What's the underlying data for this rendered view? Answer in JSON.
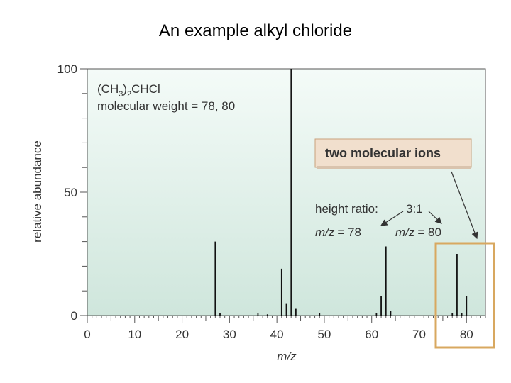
{
  "slide_title": "An example alkyl chloride",
  "chart_data": {
    "type": "bar",
    "title": "",
    "xlabel": "m/z",
    "ylabel": "relative abundance",
    "xlim": [
      0,
      84
    ],
    "ylim": [
      0,
      100
    ],
    "x_ticks": [
      0,
      10,
      20,
      30,
      40,
      50,
      60,
      70,
      80
    ],
    "y_ticks": [
      0,
      50,
      100
    ],
    "grid": false,
    "series": [
      {
        "x": [
          27,
          28,
          36,
          38,
          41,
          42,
          43,
          44,
          49,
          61,
          62,
          63,
          64,
          77,
          78,
          79,
          80
        ],
        "values": [
          30,
          1,
          1,
          0.5,
          19,
          5,
          100,
          3,
          1,
          1,
          8,
          28,
          2,
          1,
          25,
          1,
          8
        ]
      }
    ],
    "annotations": {
      "formula_main": "(CH",
      "formula_sub1": "3",
      "formula_mid": ")",
      "formula_sub2": "2",
      "formula_end": "CHCl",
      "molecular_weight": "molecular weight = 78, 80",
      "molecular_ions_label": "two molecular ions",
      "height_ratio_label": "height ratio:",
      "height_ratio_value": "3:1",
      "mz78": "= 78",
      "mz80": "= 80",
      "mz_italic": "m/z"
    },
    "colors": {
      "plot_bg_top": "#f4fbf8",
      "plot_bg_bottom": "#cfe6dc",
      "callout_bg": "#f1dfcd",
      "callout_border": "#c9a17c",
      "highlight_box": "#d8a860",
      "bar": "#111111"
    }
  }
}
